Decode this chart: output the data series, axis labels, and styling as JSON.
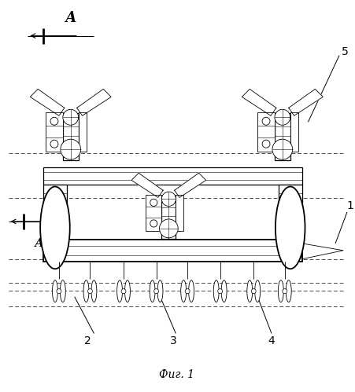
{
  "bg_color": "#ffffff",
  "fig_width": 4.52,
  "fig_height": 4.99,
  "dpi": 100,
  "caption": "Фиг. 1",
  "label_A": "А"
}
